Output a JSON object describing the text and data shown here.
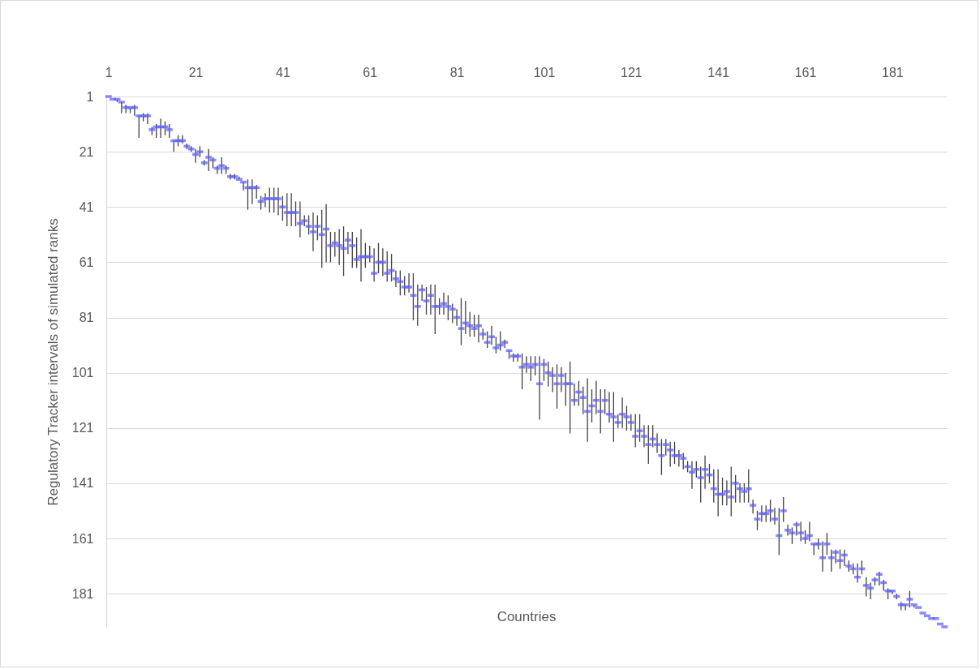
{
  "chart_data": {
    "type": "scatter",
    "xlabel": "Countries",
    "ylabel": "Regulatory Tracker intervals of simulated ranks",
    "color": "#5a5aff",
    "grid": "y",
    "xlim": [
      0.5,
      193.5
    ],
    "xticks": [
      1,
      21,
      41,
      61,
      81,
      101,
      121,
      141,
      161,
      181
    ],
    "ylim": [
      193,
      1
    ],
    "yticks": [
      1,
      21,
      41,
      61,
      81,
      101,
      121,
      141,
      161,
      181
    ],
    "x": [
      1,
      2,
      3,
      4,
      5,
      6,
      7,
      8,
      9,
      10,
      11,
      12,
      13,
      14,
      15,
      16,
      17,
      18,
      19,
      20,
      21,
      22,
      23,
      24,
      25,
      26,
      27,
      28,
      29,
      30,
      31,
      32,
      33,
      34,
      35,
      36,
      37,
      38,
      39,
      40,
      41,
      42,
      43,
      44,
      45,
      46,
      47,
      48,
      49,
      50,
      51,
      52,
      53,
      54,
      55,
      56,
      57,
      58,
      59,
      60,
      61,
      62,
      63,
      64,
      65,
      66,
      67,
      68,
      69,
      70,
      71,
      72,
      73,
      74,
      75,
      76,
      77,
      78,
      79,
      80,
      81,
      82,
      83,
      84,
      85,
      86,
      87,
      88,
      89,
      90,
      91,
      92,
      93,
      94,
      95,
      96,
      97,
      98,
      99,
      100,
      101,
      102,
      103,
      104,
      105,
      106,
      107,
      108,
      109,
      110,
      111,
      112,
      113,
      114,
      115,
      116,
      117,
      118,
      119,
      120,
      121,
      122,
      123,
      124,
      125,
      126,
      127,
      128,
      129,
      130,
      131,
      132,
      133,
      134,
      135,
      136,
      137,
      138,
      139,
      140,
      141,
      142,
      143,
      144,
      145,
      146,
      147,
      148,
      149,
      150,
      151,
      152,
      153,
      154,
      155,
      156,
      157,
      158,
      159,
      160,
      161,
      162,
      163,
      164,
      165,
      166,
      167,
      168,
      169,
      170,
      171,
      172,
      173,
      174,
      175,
      176,
      177,
      178,
      179,
      180,
      181,
      182,
      183,
      184,
      185,
      186,
      187,
      188,
      189,
      190,
      191,
      192,
      193
    ],
    "values": [
      1,
      2,
      2,
      3,
      5,
      5,
      5,
      8,
      8,
      8,
      13,
      12,
      12,
      12,
      13,
      17,
      17,
      17,
      19,
      20,
      22,
      21,
      25,
      23,
      24,
      27,
      26,
      27,
      30,
      30,
      31,
      32,
      34,
      34,
      34,
      39,
      38,
      38,
      38,
      38,
      41,
      43,
      43,
      43,
      47,
      46,
      48,
      50,
      48,
      51,
      49,
      55,
      54,
      55,
      56,
      53,
      55,
      60,
      59,
      59,
      59,
      65,
      61,
      61,
      65,
      64,
      67,
      68,
      70,
      70,
      73,
      77,
      71,
      75,
      73,
      77,
      77,
      76,
      77,
      78,
      81,
      85,
      83,
      84,
      85,
      84,
      87,
      90,
      88,
      92,
      91,
      90,
      93,
      95,
      95,
      99,
      98,
      99,
      98,
      105,
      98,
      101,
      102,
      105,
      102,
      105,
      105,
      111,
      108,
      110,
      115,
      113,
      111,
      115,
      111,
      116,
      117,
      119,
      116,
      117,
      119,
      124,
      122,
      124,
      127,
      125,
      127,
      131,
      127,
      129,
      131,
      131,
      132,
      135,
      137,
      136,
      139,
      136,
      138,
      143,
      145,
      145,
      144,
      146,
      141,
      143,
      144,
      143,
      149,
      154,
      152,
      152,
      151,
      154,
      160,
      151,
      158,
      159,
      156,
      159,
      161,
      160,
      163,
      163,
      168,
      163,
      168,
      166,
      169,
      167,
      171,
      172,
      175,
      172,
      178,
      179,
      176,
      174,
      177,
      180,
      180,
      182,
      185,
      185,
      183,
      185,
      186,
      188,
      189,
      190,
      190,
      192,
      193
    ],
    "errors": [
      null,
      null,
      [
        2,
        3
      ],
      [
        3,
        7
      ],
      [
        4,
        7
      ],
      [
        5,
        7
      ],
      [
        4,
        8
      ],
      [
        8,
        16
      ],
      [
        7,
        10
      ],
      [
        7,
        11
      ],
      [
        12,
        15
      ],
      [
        11,
        16
      ],
      [
        9,
        16
      ],
      [
        10,
        15
      ],
      [
        11,
        16
      ],
      [
        17,
        21
      ],
      [
        15,
        19
      ],
      [
        15,
        18
      ],
      [
        18,
        20
      ],
      [
        19,
        21
      ],
      [
        20,
        25
      ],
      [
        19,
        23
      ],
      [
        24,
        26
      ],
      [
        20,
        28
      ],
      [
        23,
        27
      ],
      [
        26,
        29
      ],
      [
        23,
        29
      ],
      [
        26,
        29
      ],
      [
        29,
        31
      ],
      [
        29,
        31
      ],
      [
        30,
        31
      ],
      [
        32,
        35
      ],
      [
        31,
        42
      ],
      [
        31,
        40
      ],
      [
        33,
        38
      ],
      [
        37,
        42
      ],
      [
        36,
        41
      ],
      [
        34,
        43
      ],
      [
        34,
        43
      ],
      [
        34,
        44
      ],
      [
        37,
        46
      ],
      [
        36,
        48
      ],
      [
        36,
        48
      ],
      [
        39,
        48
      ],
      [
        39,
        52
      ],
      [
        44,
        48
      ],
      [
        44,
        51
      ],
      [
        43,
        57
      ],
      [
        44,
        53
      ],
      [
        42,
        63
      ],
      [
        40,
        61
      ],
      [
        50,
        61
      ],
      [
        50,
        59
      ],
      [
        49,
        62
      ],
      [
        48,
        66
      ],
      [
        50,
        58
      ],
      [
        50,
        63
      ],
      [
        52,
        63
      ],
      [
        49,
        68
      ],
      [
        54,
        63
      ],
      [
        55,
        61
      ],
      [
        56,
        68
      ],
      [
        54,
        65
      ],
      [
        56,
        66
      ],
      [
        57,
        68
      ],
      [
        58,
        68
      ],
      [
        64,
        70
      ],
      [
        64,
        73
      ],
      [
        66,
        73
      ],
      [
        65,
        72
      ],
      [
        65,
        82
      ],
      [
        69,
        84
      ],
      [
        69,
        75
      ],
      [
        70,
        80
      ],
      [
        69,
        80
      ],
      [
        69,
        87
      ],
      [
        74,
        80
      ],
      [
        72,
        80
      ],
      [
        73,
        82
      ],
      [
        76,
        83
      ],
      [
        78,
        84
      ],
      [
        74,
        91
      ],
      [
        75,
        87
      ],
      [
        79,
        88
      ],
      [
        80,
        88
      ],
      [
        80,
        90
      ],
      [
        85,
        89
      ],
      [
        86,
        92
      ],
      [
        84,
        91
      ],
      [
        88,
        94
      ],
      [
        86,
        93
      ],
      [
        89,
        92
      ],
      [
        93,
        96
      ],
      [
        94,
        97
      ],
      [
        94,
        97
      ],
      [
        94,
        107
      ],
      [
        95,
        101
      ],
      [
        95,
        104
      ],
      [
        95,
        102
      ],
      [
        95,
        118
      ],
      [
        96,
        104
      ],
      [
        97,
        106
      ],
      [
        99,
        108
      ],
      [
        98,
        114
      ],
      [
        99,
        108
      ],
      [
        101,
        113
      ],
      [
        97,
        123
      ],
      [
        105,
        113
      ],
      [
        104,
        113
      ],
      [
        106,
        116
      ],
      [
        103,
        126
      ],
      [
        107,
        119
      ],
      [
        104,
        116
      ],
      [
        107,
        123
      ],
      [
        107,
        116
      ],
      [
        108,
        119
      ],
      [
        108,
        126
      ],
      [
        116,
        121
      ],
      [
        110,
        121
      ],
      [
        113,
        122
      ],
      [
        116,
        122
      ],
      [
        116,
        128
      ],
      [
        116,
        126
      ],
      [
        120,
        128
      ],
      [
        120,
        134
      ],
      [
        120,
        128
      ],
      [
        123,
        130
      ],
      [
        125,
        138
      ],
      [
        125,
        131
      ],
      [
        126,
        135
      ],
      [
        126,
        134
      ],
      [
        129,
        135
      ],
      [
        130,
        136
      ],
      [
        133,
        137
      ],
      [
        133,
        143
      ],
      [
        133,
        139
      ],
      [
        135,
        148
      ],
      [
        131,
        143
      ],
      [
        134,
        141
      ],
      [
        136,
        148
      ],
      [
        136,
        153
      ],
      [
        139,
        149
      ],
      [
        140,
        149
      ],
      [
        135,
        153
      ],
      [
        138,
        148
      ],
      [
        141,
        148
      ],
      [
        141,
        148
      ],
      [
        136,
        148
      ],
      [
        147,
        152
      ],
      [
        151,
        158
      ],
      [
        149,
        155
      ],
      [
        149,
        155
      ],
      [
        147,
        155
      ],
      [
        150,
        156
      ],
      [
        150,
        167
      ],
      [
        146,
        155
      ],
      [
        156,
        160
      ],
      [
        157,
        163
      ],
      [
        155,
        160
      ],
      [
        155,
        162
      ],
      [
        158,
        163
      ],
      [
        155,
        162
      ],
      [
        163,
        167
      ],
      [
        161,
        165
      ],
      [
        162,
        173
      ],
      [
        159,
        167
      ],
      [
        165,
        173
      ],
      [
        165,
        170
      ],
      [
        165,
        172
      ],
      [
        165,
        171
      ],
      [
        169,
        173
      ],
      [
        170,
        174
      ],
      [
        170,
        177
      ],
      [
        169,
        174
      ],
      [
        175,
        182
      ],
      [
        177,
        183
      ],
      [
        175,
        178
      ],
      [
        173,
        178
      ],
      [
        176,
        180
      ],
      [
        179,
        183
      ],
      [
        180,
        181
      ],
      [
        181,
        183
      ],
      [
        184,
        187
      ],
      [
        185,
        187
      ],
      [
        180,
        186
      ],
      [
        185,
        186
      ],
      null,
      null,
      null,
      null,
      null,
      null,
      null
    ]
  }
}
